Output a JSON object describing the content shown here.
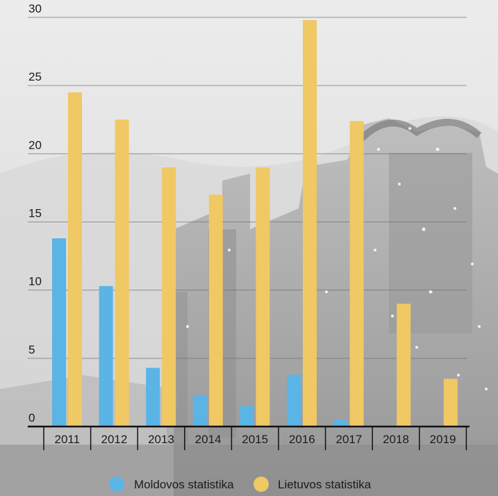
{
  "chart_data": {
    "type": "bar",
    "categories": [
      "2011",
      "2012",
      "2013",
      "2014",
      "2015",
      "2016",
      "2017",
      "2018",
      "2019"
    ],
    "series": [
      {
        "name": "Moldovos statistika",
        "color": "#5ab4e6",
        "values": [
          13.8,
          10.3,
          4.3,
          2.3,
          1.5,
          3.8,
          0.5,
          0.1,
          0.1
        ]
      },
      {
        "name": "Lietuvos statistika",
        "color": "#f0c864",
        "values": [
          24.5,
          22.5,
          19.0,
          17.0,
          19.0,
          29.8,
          22.4,
          9.0,
          3.5
        ]
      }
    ],
    "yticks": [
      "0",
      "5",
      "10",
      "15",
      "20",
      "25",
      "30"
    ],
    "ylim": [
      0,
      30
    ],
    "grid": true,
    "legend_position": "bottom-center",
    "background": "greyscale photo of an industrial plant at night"
  }
}
